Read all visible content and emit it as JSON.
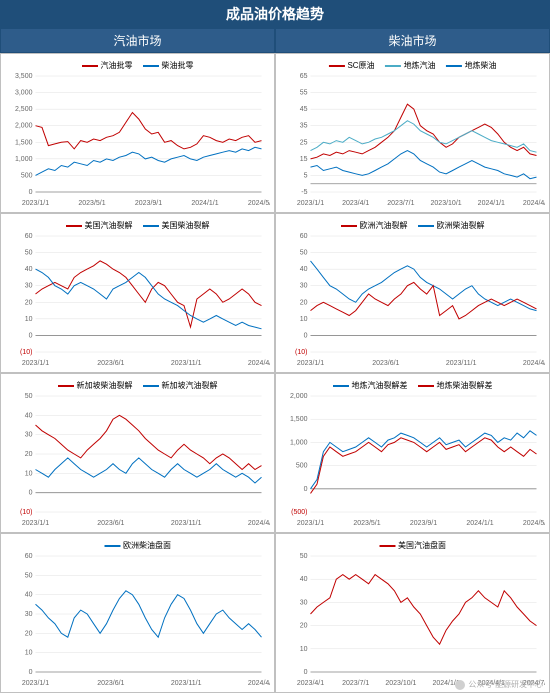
{
  "title": "成品油价格趋势",
  "left_header": "汽油市场",
  "right_header": "柴油市场",
  "colors": {
    "red": "#c00000",
    "blue": "#0070c0",
    "cyan": "#4bacc6",
    "grid": "#e0e0e0",
    "axis": "#888888"
  },
  "watermark": "公众号·能源研发中心",
  "charts": [
    {
      "legend": [
        {
          "label": "汽油批零",
          "color": "#c00000"
        },
        {
          "label": "柴油批零",
          "color": "#0070c0"
        }
      ],
      "ylim": [
        0,
        3500
      ],
      "yticks": [
        0,
        500,
        1000,
        1500,
        2000,
        2500,
        3000,
        3500
      ],
      "xlabels": [
        "2023/1/1",
        "2023/5/1",
        "2023/9/1",
        "2024/1/1",
        "2024/5/1"
      ],
      "series": [
        {
          "color": "#c00000",
          "data": [
            2000,
            1950,
            1400,
            1450,
            1500,
            1520,
            1300,
            1550,
            1500,
            1600,
            1550,
            1650,
            1700,
            1800,
            2100,
            2400,
            2200,
            1900,
            1750,
            1800,
            1500,
            1550,
            1400,
            1300,
            1350,
            1450,
            1700,
            1650,
            1550,
            1500,
            1600,
            1550,
            1650,
            1700,
            1500,
            1550
          ]
        },
        {
          "color": "#0070c0",
          "data": [
            500,
            600,
            700,
            650,
            800,
            750,
            900,
            850,
            800,
            950,
            900,
            1000,
            950,
            1050,
            1100,
            1200,
            1150,
            1000,
            1050,
            950,
            900,
            1000,
            1050,
            1100,
            1000,
            950,
            1050,
            1100,
            1150,
            1200,
            1250,
            1200,
            1300,
            1250,
            1350,
            1300
          ]
        }
      ]
    },
    {
      "legend": [
        {
          "label": "SC原油",
          "color": "#c00000"
        },
        {
          "label": "地炼汽油",
          "color": "#4bacc6"
        },
        {
          "label": "地炼柴油",
          "color": "#0070c0"
        }
      ],
      "ylim": [
        -5,
        65
      ],
      "yticks": [
        -5,
        5,
        15,
        25,
        35,
        45,
        55,
        65
      ],
      "xlabels": [
        "2023/1/1",
        "2023/4/1",
        "2023/7/1",
        "2023/10/1",
        "2024/1/1",
        "2024/4/1"
      ],
      "series": [
        {
          "color": "#c00000",
          "data": [
            15,
            16,
            18,
            17,
            19,
            18,
            20,
            19,
            18,
            20,
            22,
            25,
            28,
            32,
            40,
            48,
            45,
            35,
            32,
            30,
            25,
            22,
            24,
            28,
            30,
            32,
            34,
            36,
            34,
            30,
            25,
            22,
            20,
            22,
            18,
            17
          ]
        },
        {
          "color": "#4bacc6",
          "data": [
            20,
            22,
            25,
            24,
            26,
            25,
            28,
            26,
            24,
            25,
            27,
            28,
            30,
            32,
            35,
            38,
            36,
            32,
            30,
            28,
            25,
            24,
            26,
            28,
            30,
            32,
            30,
            28,
            26,
            25,
            24,
            23,
            22,
            24,
            20,
            19
          ]
        },
        {
          "color": "#0070c0",
          "data": [
            10,
            11,
            8,
            9,
            10,
            8,
            7,
            6,
            5,
            6,
            8,
            10,
            12,
            15,
            18,
            20,
            18,
            14,
            12,
            10,
            7,
            6,
            8,
            10,
            12,
            14,
            12,
            10,
            9,
            8,
            6,
            5,
            4,
            6,
            3,
            4
          ]
        }
      ]
    },
    {
      "legend": [
        {
          "label": "美国汽油裂解",
          "color": "#c00000"
        },
        {
          "label": "美国柴油裂解",
          "color": "#0070c0"
        }
      ],
      "ylim": [
        -10,
        60
      ],
      "yticks": [
        -10,
        0,
        10,
        20,
        30,
        40,
        50,
        60
      ],
      "neg_ticks": [
        -10
      ],
      "xlabels": [
        "2023/1/1",
        "2023/6/1",
        "2023/11/1",
        "2024/4/1"
      ],
      "series": [
        {
          "color": "#c00000",
          "data": [
            25,
            28,
            30,
            32,
            30,
            28,
            35,
            38,
            40,
            42,
            45,
            43,
            40,
            38,
            35,
            30,
            25,
            20,
            28,
            32,
            30,
            25,
            20,
            18,
            5,
            22,
            25,
            28,
            25,
            20,
            22,
            25,
            28,
            25,
            20,
            18
          ]
        },
        {
          "color": "#0070c0",
          "data": [
            40,
            38,
            35,
            30,
            28,
            25,
            30,
            32,
            30,
            28,
            25,
            22,
            28,
            30,
            32,
            35,
            38,
            35,
            30,
            25,
            22,
            20,
            18,
            15,
            12,
            10,
            8,
            10,
            12,
            10,
            8,
            6,
            8,
            6,
            5,
            4
          ]
        }
      ]
    },
    {
      "legend": [
        {
          "label": "欧洲汽油裂解",
          "color": "#c00000"
        },
        {
          "label": "欧洲柴油裂解",
          "color": "#0070c0"
        }
      ],
      "ylim": [
        -10,
        60
      ],
      "yticks": [
        -10,
        0,
        10,
        20,
        30,
        40,
        50,
        60
      ],
      "neg_ticks": [
        -10
      ],
      "xlabels": [
        "2023/1/1",
        "2023/6/1",
        "2023/11/1",
        "2024/4/1"
      ],
      "series": [
        {
          "color": "#0070c0",
          "data": [
            45,
            40,
            35,
            30,
            28,
            25,
            22,
            20,
            25,
            28,
            30,
            32,
            35,
            38,
            40,
            42,
            40,
            35,
            32,
            30,
            28,
            25,
            22,
            25,
            28,
            30,
            25,
            22,
            20,
            18,
            20,
            22,
            20,
            18,
            16,
            15
          ]
        },
        {
          "color": "#c00000",
          "data": [
            15,
            18,
            20,
            18,
            16,
            14,
            12,
            15,
            20,
            25,
            22,
            20,
            18,
            22,
            25,
            30,
            32,
            28,
            25,
            30,
            12,
            15,
            18,
            10,
            12,
            15,
            18,
            20,
            22,
            20,
            18,
            20,
            22,
            20,
            18,
            16
          ]
        }
      ]
    },
    {
      "legend": [
        {
          "label": "新加坡柴油裂解",
          "color": "#c00000"
        },
        {
          "label": "新加坡汽油裂解",
          "color": "#0070c0"
        }
      ],
      "ylim": [
        -10,
        50
      ],
      "yticks": [
        -10,
        0,
        10,
        20,
        30,
        40,
        50
      ],
      "neg_ticks": [
        -10
      ],
      "xlabels": [
        "2023/1/1",
        "2023/6/1",
        "2023/11/1",
        "2024/4/1"
      ],
      "series": [
        {
          "color": "#c00000",
          "data": [
            35,
            32,
            30,
            28,
            25,
            22,
            20,
            18,
            22,
            25,
            28,
            32,
            38,
            40,
            38,
            35,
            32,
            28,
            25,
            22,
            20,
            18,
            22,
            25,
            22,
            20,
            18,
            15,
            18,
            20,
            18,
            15,
            12,
            15,
            12,
            14
          ]
        },
        {
          "color": "#0070c0",
          "data": [
            12,
            10,
            8,
            12,
            15,
            18,
            15,
            12,
            10,
            8,
            10,
            12,
            15,
            12,
            10,
            15,
            18,
            15,
            12,
            10,
            8,
            12,
            15,
            12,
            10,
            8,
            10,
            12,
            15,
            12,
            10,
            8,
            10,
            8,
            5,
            8
          ]
        }
      ]
    },
    {
      "legend": [
        {
          "label": "地炼汽油裂解差",
          "color": "#0070c0"
        },
        {
          "label": "地炼柴油裂解差",
          "color": "#c00000"
        }
      ],
      "ylim": [
        -500,
        2000
      ],
      "yticks": [
        -500,
        0,
        500,
        1000,
        1500,
        2000
      ],
      "neg_ticks": [
        -500
      ],
      "xlabels": [
        "2023/1/1",
        "2023/5/1",
        "2023/9/1",
        "2024/1/1",
        "2024/5/1"
      ],
      "series": [
        {
          "color": "#0070c0",
          "data": [
            0,
            200,
            800,
            1000,
            900,
            800,
            850,
            900,
            1000,
            1100,
            1000,
            900,
            1050,
            1100,
            1200,
            1150,
            1100,
            1000,
            900,
            1000,
            1100,
            950,
            1000,
            1050,
            900,
            1000,
            1100,
            1200,
            1150,
            1000,
            1100,
            1050,
            1200,
            1100,
            1250,
            1150
          ]
        },
        {
          "color": "#c00000",
          "data": [
            -100,
            100,
            700,
            900,
            800,
            700,
            750,
            800,
            900,
            1000,
            900,
            800,
            950,
            1000,
            1100,
            1050,
            1000,
            900,
            800,
            900,
            1000,
            850,
            900,
            950,
            800,
            900,
            1000,
            1100,
            1050,
            900,
            800,
            900,
            800,
            700,
            850,
            750
          ]
        }
      ]
    },
    {
      "legend": [
        {
          "label": "欧洲柴油盘面",
          "color": "#0070c0"
        }
      ],
      "ylim": [
        0,
        60
      ],
      "yticks": [
        0,
        10,
        20,
        30,
        40,
        50,
        60
      ],
      "xlabels": [
        "2023/1/1",
        "2023/6/1",
        "2023/11/1",
        "2024/4/1"
      ],
      "series": [
        {
          "color": "#0070c0",
          "data": [
            35,
            32,
            28,
            25,
            20,
            18,
            28,
            32,
            30,
            25,
            20,
            25,
            32,
            38,
            42,
            40,
            35,
            28,
            22,
            18,
            28,
            35,
            40,
            38,
            32,
            25,
            20,
            25,
            30,
            32,
            28,
            25,
            22,
            25,
            22,
            18
          ]
        }
      ]
    },
    {
      "legend": [
        {
          "label": "美国汽油盘面",
          "color": "#c00000"
        }
      ],
      "ylim": [
        0,
        50
      ],
      "yticks": [
        0,
        10,
        20,
        30,
        40,
        50
      ],
      "xlabels": [
        "2023/4/1",
        "2023/7/1",
        "2023/10/1",
        "2024/1/1",
        "2024/4/1",
        "2024/7/1"
      ],
      "series": [
        {
          "color": "#c00000",
          "data": [
            25,
            28,
            30,
            32,
            40,
            42,
            40,
            42,
            40,
            38,
            42,
            40,
            38,
            35,
            30,
            32,
            28,
            25,
            20,
            15,
            12,
            18,
            22,
            25,
            30,
            32,
            35,
            32,
            30,
            28,
            35,
            32,
            28,
            25,
            22,
            20
          ]
        }
      ]
    }
  ]
}
